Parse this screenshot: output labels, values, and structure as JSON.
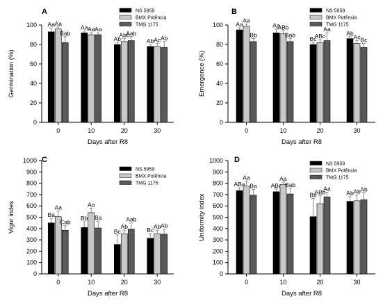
{
  "colors": {
    "series": [
      "#000000",
      "#c8c8c8",
      "#595959"
    ],
    "bar_stroke": "#000000",
    "error_bar": "#8c8c8c"
  },
  "chart_data": [
    {
      "type": "bar",
      "panel": "A",
      "categories": [
        "0",
        "10",
        "20",
        "30"
      ],
      "xlabel": "Days after R8",
      "ylabel": "Germination (%)",
      "ylim": [
        0,
        100
      ],
      "yticks": [
        "0",
        "20",
        "40",
        "60",
        "80",
        "100"
      ],
      "legend": "top-right",
      "series": [
        {
          "name": "NS 5959",
          "values": [
            93,
            92,
            80,
            78
          ],
          "errors": [
            4,
            2,
            2,
            2
          ],
          "labels": [
            "Aa",
            "Aa",
            "Ab",
            "Ab"
          ]
        },
        {
          "name": "BMX Potência",
          "values": [
            96,
            90,
            83,
            78
          ],
          "errors": [
            2,
            2,
            3,
            3
          ],
          "labels": [
            "Aa",
            "Aa",
            "Abc",
            "Ac"
          ]
        },
        {
          "name": "TMG 1175",
          "values": [
            82,
            90,
            84,
            77
          ],
          "errors": [
            6,
            2,
            4,
            6
          ],
          "labels": [
            "Bab",
            "Aa",
            "Aab",
            "Ab"
          ]
        }
      ]
    },
    {
      "type": "bar",
      "panel": "B",
      "categories": [
        "0",
        "10",
        "20",
        "30"
      ],
      "xlabel": "Days after R8",
      "ylabel": "Emergence (%)",
      "ylim": [
        0,
        100
      ],
      "yticks": [
        "0",
        "20",
        "40",
        "60",
        "80",
        "100"
      ],
      "legend": "top-right",
      "series": [
        {
          "name": "NS 5959",
          "values": [
            95,
            92,
            80,
            86
          ],
          "errors": [
            2,
            4,
            2,
            2
          ],
          "labels": [
            "Aa",
            "Aa",
            "Bc",
            "Ab"
          ]
        },
        {
          "name": "BMX Potência",
          "values": [
            99,
            91,
            82,
            81
          ],
          "errors": [
            2,
            3,
            3,
            3
          ],
          "labels": [
            "Aa",
            "ABb",
            "ABc",
            "Ac"
          ]
        },
        {
          "name": "TMG 1175",
          "values": [
            83,
            83,
            84,
            77
          ],
          "errors": [
            3,
            3,
            8,
            4
          ],
          "labels": [
            "Bb",
            "Bab",
            "Aa",
            "Bc"
          ]
        }
      ]
    },
    {
      "type": "bar",
      "panel": "C",
      "categories": [
        "0",
        "10",
        "20",
        "30"
      ],
      "xlabel": "Days after R8",
      "ylabel": "Vigor index",
      "ylim": [
        0,
        1000
      ],
      "yticks": [
        "0",
        "100",
        "200",
        "300",
        "400",
        "500",
        "600",
        "700",
        "800",
        "900",
        "1000"
      ],
      "legend": "top-right",
      "series": [
        {
          "name": "NS 5959",
          "values": [
            450,
            410,
            260,
            315
          ],
          "errors": [
            40,
            50,
            85,
            40
          ],
          "labels": [
            "Ba",
            "Bb",
            "Bc",
            "Bc"
          ]
        },
        {
          "name": "BMX Potência",
          "values": [
            505,
            540,
            355,
            355
          ],
          "errors": [
            50,
            40,
            30,
            30
          ],
          "labels": [
            "Aa",
            "Aa",
            "Ab",
            "Ab"
          ]
        },
        {
          "name": "TMG 1175",
          "values": [
            385,
            405,
            395,
            350
          ],
          "errors": [
            40,
            60,
            55,
            45
          ],
          "labels": [
            "Cab",
            "Ba",
            "Aab",
            "Ab"
          ]
        }
      ]
    },
    {
      "type": "bar",
      "panel": "D",
      "categories": [
        "0",
        "10",
        "20",
        "30"
      ],
      "xlabel": "Days after R8",
      "ylabel": "Uniformity index",
      "ylim": [
        0,
        1000
      ],
      "yticks": [
        "0",
        "100",
        "200",
        "300",
        "400",
        "500",
        "600",
        "700",
        "800",
        "900",
        "1000"
      ],
      "legend": "top-right",
      "series": [
        {
          "name": "NS 5959",
          "values": [
            735,
            725,
            505,
            640
          ],
          "errors": [
            25,
            25,
            160,
            40
          ],
          "labels": [
            "ABa",
            "ABa",
            "Bb",
            "Ab"
          ]
        },
        {
          "name": "BMX Potência",
          "values": [
            775,
            790,
            620,
            645
          ],
          "errors": [
            45,
            20,
            70,
            50
          ],
          "labels": [
            "Aa",
            "Aa",
            "ABb",
            "Ab"
          ]
        },
        {
          "name": "TMG 1175",
          "values": [
            695,
            705,
            680,
            655
          ],
          "errors": [
            50,
            50,
            40,
            60
          ],
          "labels": [
            "Ba",
            "Bab",
            "Aa",
            "Ab"
          ]
        }
      ]
    }
  ]
}
